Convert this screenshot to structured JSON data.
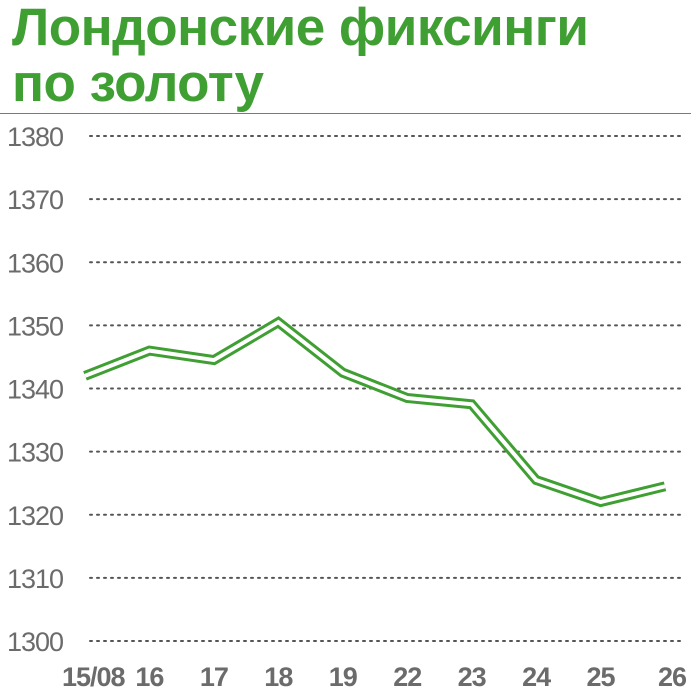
{
  "title_line1": "Лондонские фиксинги",
  "title_line2": "по золоту",
  "colors": {
    "title": "#3f9f33",
    "line": "#3f9f33",
    "grid": "#555555",
    "ticks": "#6b6b6b"
  },
  "chart_data": {
    "type": "line",
    "title": "Лондонские фиксинги по золоту",
    "categories": [
      "15/08",
      "16",
      "17",
      "18",
      "19",
      "22",
      "23",
      "24",
      "25",
      "26"
    ],
    "series": [
      {
        "values": [
          1342,
          1346,
          1344.5,
          1350.5,
          1342.5,
          1338.5,
          1337.5,
          1325.5,
          1322,
          1324.5
        ]
      }
    ],
    "yticks": [
      1380,
      1370,
      1360,
      1350,
      1340,
      1330,
      1320,
      1310,
      1300
    ],
    "ylim": [
      1300,
      1380
    ],
    "grid": "horizontal dotted",
    "legend": "none"
  }
}
